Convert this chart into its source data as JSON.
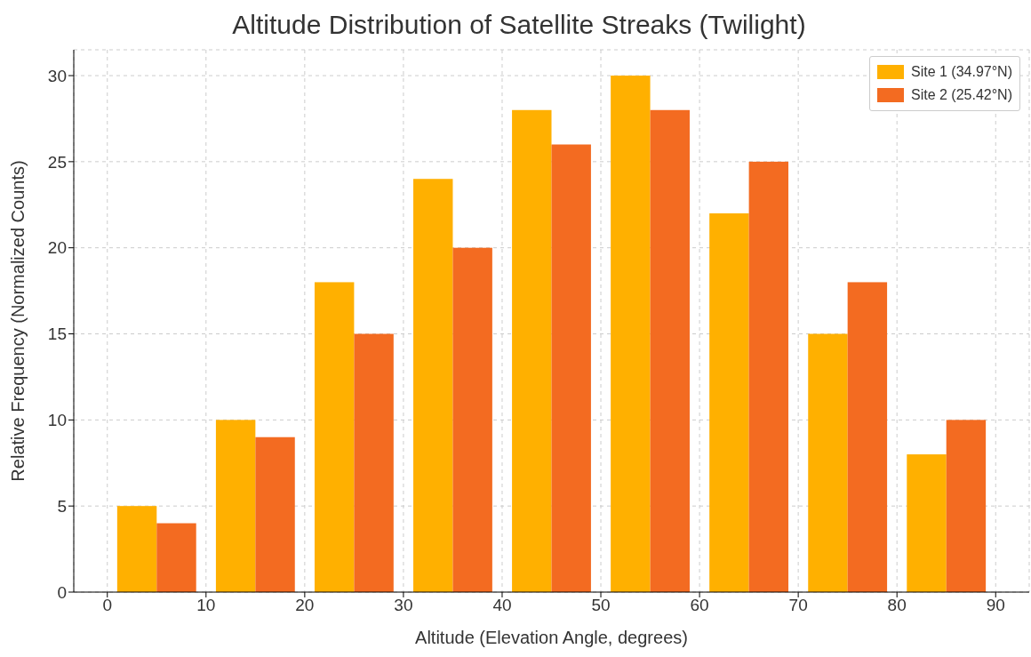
{
  "chart_data": {
    "type": "bar",
    "title": "Altitude Distribution of Satellite Streaks (Twilight)",
    "xlabel": "Altitude (Elevation Angle, degrees)",
    "ylabel": "Relative Frequency (Normalized Counts)",
    "series": [
      {
        "name": "Site 1 (34.97°N)",
        "color": "#ffb000",
        "x": [
          3,
          13,
          23,
          33,
          43,
          53,
          63,
          73,
          83
        ],
        "values": [
          5,
          10,
          18,
          24,
          28,
          30,
          22,
          15,
          8
        ]
      },
      {
        "name": "Site 2 (25.42°N)",
        "color": "#f36b21",
        "x": [
          7,
          17,
          27,
          37,
          47,
          57,
          67,
          77,
          87
        ],
        "values": [
          4,
          9,
          15,
          20,
          26,
          28,
          25,
          18,
          10
        ]
      }
    ],
    "xlim": [
      -3.4,
      93.4
    ],
    "xticks": [
      0,
      10,
      20,
      30,
      40,
      50,
      60,
      70,
      80,
      90
    ],
    "ylim": [
      0,
      31.5
    ],
    "yticks": [
      0,
      5,
      10,
      15,
      20,
      25,
      30
    ],
    "grid": true,
    "legend": "top right"
  }
}
